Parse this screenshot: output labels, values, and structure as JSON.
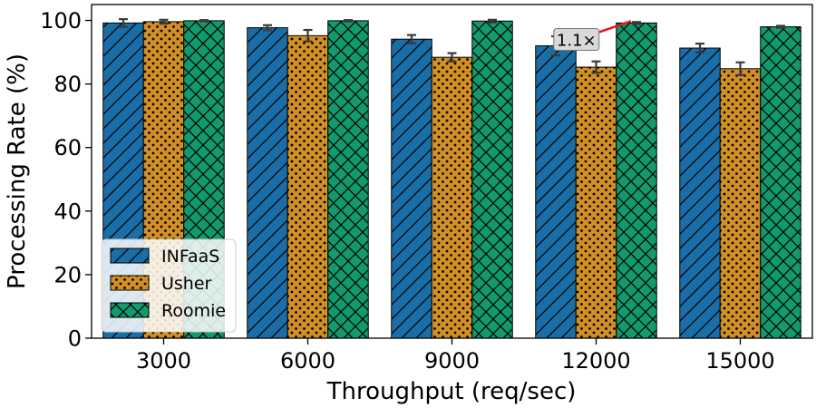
{
  "chart_data": {
    "type": "bar",
    "title": "",
    "xlabel": "Throughput (req/sec)",
    "ylabel": "Processing Rate (%)",
    "ylim": [
      0,
      105
    ],
    "yticks": [
      0,
      20,
      40,
      60,
      80,
      100
    ],
    "categories": [
      "3000",
      "6000",
      "9000",
      "12000",
      "15000"
    ],
    "series": [
      {
        "name": "INFaaS",
        "color": "#1a6ea8",
        "hatch": "diagonal",
        "values": [
          99.2,
          97.7,
          94.1,
          92.0,
          91.3
        ],
        "errors": [
          1.2,
          0.8,
          1.3,
          3.0,
          1.4
        ]
      },
      {
        "name": "Usher",
        "color": "#d18f26",
        "hatch": "dots",
        "values": [
          99.6,
          95.2,
          88.4,
          85.3,
          84.8
        ],
        "errors": [
          0.6,
          1.8,
          1.3,
          1.8,
          2.0
        ]
      },
      {
        "name": "Roomie",
        "color": "#119a6e",
        "hatch": "crosshatch",
        "values": [
          99.9,
          99.9,
          99.8,
          99.2,
          98.0
        ],
        "errors": [
          0.2,
          0.2,
          0.4,
          0.3,
          0.3
        ]
      }
    ],
    "annotation": {
      "text": "1.1×",
      "category_index": 3,
      "from_series": 2,
      "to_series": 0
    },
    "legend_position": "lower-left",
    "grid": false
  }
}
